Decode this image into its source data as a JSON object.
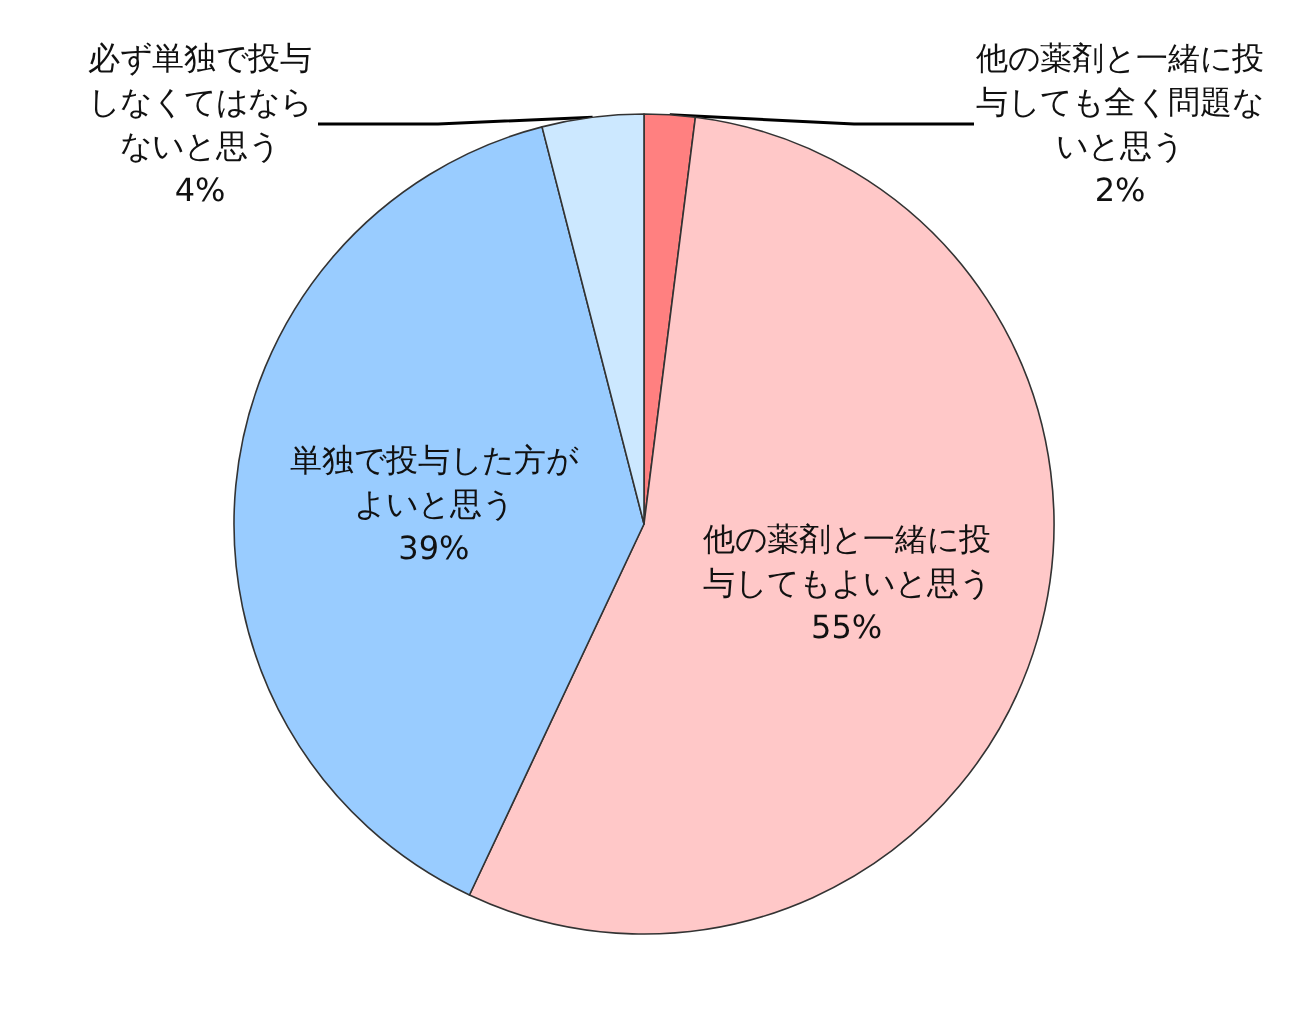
{
  "chart_data": {
    "type": "pie",
    "categories": [
      "他の薬剤と一緒に投与しても全く問題ないと思う",
      "他の薬剤と一緒に投与してもよいと思う",
      "単独で投与した方がよいと思う",
      "必ず単独で投与しなくてはならないと思う"
    ],
    "values": [
      2,
      55,
      39,
      4
    ],
    "value_labels": [
      "2%",
      "55%",
      "39%",
      "4%"
    ],
    "colors": [
      "#ff8080",
      "#ffc8c8",
      "#99ccff",
      "#cce8ff"
    ]
  }
}
